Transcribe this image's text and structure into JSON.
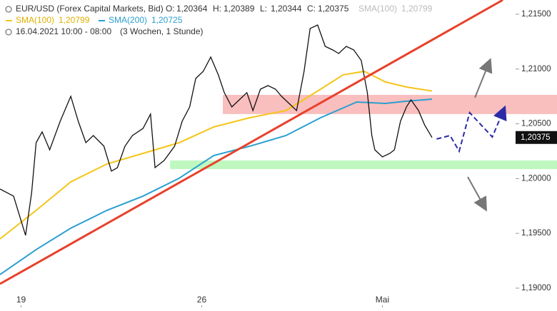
{
  "chart_data": {
    "type": "line",
    "header": {
      "ohlc": [
        {
          "label": "O:",
          "value": "1,20364"
        },
        {
          "label": "H:",
          "value": "1,20389"
        },
        {
          "label": "L:",
          "value": "1,20344"
        },
        {
          "label": "C:",
          "value": "1,20375"
        }
      ],
      "sma_values": [
        "1,20799",
        "1,20725"
      ],
      "period": "16.04.2021 10:00 - 08:00",
      "range": "(3 Wochen, 1 Stunde)"
    },
    "xlim": [
      -14,
      356
    ],
    "ylim": [
      1.18824,
      1.2163
    ],
    "xticks": [
      {
        "value": 0,
        "label": "19"
      },
      {
        "value": 120,
        "label": "26"
      },
      {
        "value": 240,
        "label": "Mai"
      }
    ],
    "yticks": [
      {
        "value": 1.19,
        "label": "1,19000"
      },
      {
        "value": 1.195,
        "label": "1,19500"
      },
      {
        "value": 1.2,
        "label": "1,20000"
      },
      {
        "value": 1.205,
        "label": "1,20500"
      },
      {
        "value": 1.21,
        "label": "1,21000"
      },
      {
        "value": 1.215,
        "label": "1,21500"
      }
    ],
    "last_price": {
      "value": 1.20375,
      "label": "1,20375"
    },
    "series": [
      {
        "name": "EUR/USD (Forex Capital Markets, Bid)",
        "color": "#111111",
        "x": [
          -14,
          -5,
          3,
          7,
          10,
          14,
          19,
          26,
          33,
          38,
          43,
          48,
          55,
          60,
          64,
          69,
          74,
          81,
          86,
          89,
          95,
          102,
          107,
          112,
          116,
          121,
          126,
          131,
          135,
          140,
          145,
          150,
          154,
          159,
          164,
          169,
          173,
          178,
          183,
          188,
          192,
          197,
          202,
          207,
          211,
          216,
          221,
          226,
          230,
          233,
          235,
          240,
          245,
          248,
          252,
          256,
          259,
          264,
          268,
          273
        ],
        "values": [
          1.19905,
          1.1984,
          1.19482,
          1.19872,
          1.20328,
          1.20426,
          1.20263,
          1.20523,
          1.20751,
          1.20523,
          1.20328,
          1.20393,
          1.20296,
          1.20068,
          1.201,
          1.20296,
          1.20393,
          1.20458,
          1.20589,
          1.201,
          1.20165,
          1.20296,
          1.20523,
          1.20654,
          1.20914,
          1.20979,
          1.21109,
          1.20947,
          1.20784,
          1.20654,
          1.20719,
          1.20784,
          1.20621,
          1.20816,
          1.20849,
          1.20816,
          1.20751,
          1.20686,
          1.20621,
          1.20979,
          1.2137,
          1.21402,
          1.21207,
          1.21174,
          1.21142,
          1.21207,
          1.21174,
          1.21077,
          1.20784,
          1.20393,
          1.20263,
          1.20198,
          1.2023,
          1.20263,
          1.20523,
          1.20654,
          1.20719,
          1.20621,
          1.20491,
          1.20375
        ]
      },
      {
        "name": "SMA(100)",
        "color": "#f5c518",
        "x": [
          -14,
          10,
          33,
          57,
          81,
          105,
          128,
          152,
          176,
          199,
          214,
          228,
          242,
          256,
          273
        ],
        "values": [
          1.19449,
          1.1971,
          1.1997,
          1.20133,
          1.2023,
          1.20328,
          1.20471,
          1.20556,
          1.20621,
          1.20816,
          1.20947,
          1.20979,
          1.20882,
          1.20836,
          1.20799
        ]
      },
      {
        "name": "SMA(200)",
        "color": "#2a9fd0",
        "x": [
          -14,
          10,
          33,
          57,
          81,
          105,
          128,
          152,
          176,
          199,
          223,
          242,
          256,
          273
        ],
        "values": [
          1.19124,
          1.19352,
          1.19547,
          1.1971,
          1.1984,
          1.20003,
          1.20211,
          1.20296,
          1.20393,
          1.20556,
          1.20699,
          1.20686,
          1.20706,
          1.20725
        ]
      }
    ],
    "annotations": {
      "trendline": {
        "color": "#e8412c",
        "x": [
          -14,
          320
        ],
        "values": [
          1.19039,
          1.2163
        ]
      },
      "resistance_band": {
        "color": "#f7a8a8",
        "x": [
          134,
          356
        ],
        "values": [
          1.20764,
          1.20589
        ]
      },
      "support_band": {
        "color": "#a8f5a8",
        "x": [
          99,
          356
        ],
        "values": [
          1.20165,
          1.20087
        ]
      },
      "forecast": {
        "color": "#2b2ba8",
        "x": [
          276,
          285,
          291,
          298,
          313,
          320
        ],
        "values": [
          1.20361,
          1.20393,
          1.2025,
          1.20602,
          1.2038,
          1.20608
        ]
      }
    }
  }
}
